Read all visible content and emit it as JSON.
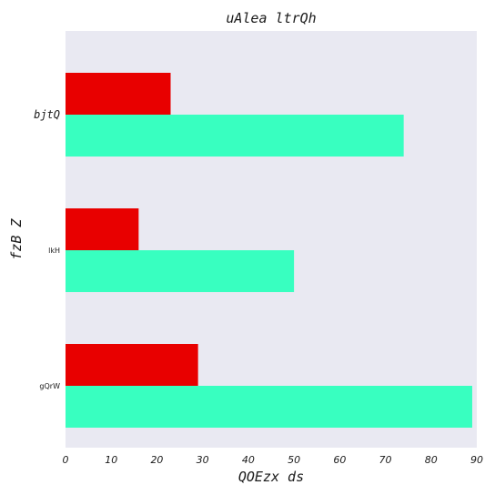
{
  "chart_data": {
    "type": "bar",
    "orientation": "horizontal",
    "title": "uAlea ltrQh",
    "xlabel": "QOEzx ds",
    "ylabel": "fzB Z",
    "categories": [
      "bjtQ",
      "lkH",
      "gQrW"
    ],
    "series": [
      {
        "values": [
          23,
          16,
          29
        ],
        "color": "#e80000"
      },
      {
        "values": [
          74,
          50,
          89
        ],
        "color": "#38ffc0"
      }
    ],
    "xlim": [
      0,
      90
    ],
    "xticks": [
      "0",
      "10",
      "20",
      "30",
      "40",
      "50",
      "60",
      "70",
      "80",
      "90"
    ],
    "grid": false,
    "background": "#e9e9f2"
  }
}
